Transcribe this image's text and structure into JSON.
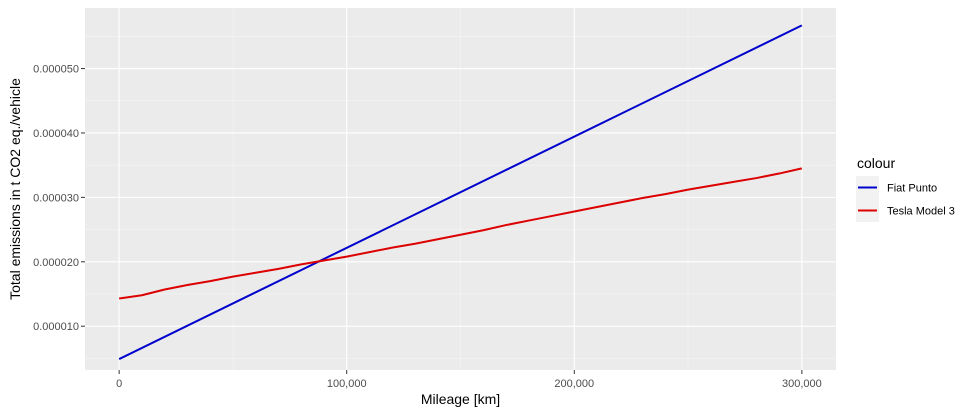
{
  "chart_data": {
    "type": "line",
    "title": "",
    "xlabel": "Mileage [km]",
    "ylabel": "Total emissions in t CO2 eq./vehicle",
    "xlim": [
      -15000,
      315000
    ],
    "ylim": [
      3.2e-06,
      5.94e-05
    ],
    "x_ticks": [
      0,
      100000,
      200000,
      300000
    ],
    "x_tick_labels": [
      "0",
      "100,000",
      "200,000",
      "300,000"
    ],
    "y_ticks": [
      1e-05,
      2e-05,
      3e-05,
      4e-05,
      5e-05
    ],
    "y_tick_labels": [
      "0.000010",
      "0.000020",
      "0.000030",
      "0.000040",
      "0.000050"
    ],
    "grid": true,
    "background": "#ebebeb",
    "legend": {
      "title": "colour",
      "position": "right"
    },
    "series": [
      {
        "name": "Fiat Punto",
        "color": "#0000cd",
        "x": [
          0,
          300000
        ],
        "y": [
          4.9e-06,
          5.67e-05
        ]
      },
      {
        "name": "Tesla Model 3",
        "color": "#dd0000",
        "x": [
          0,
          10000,
          20000,
          30000,
          40000,
          50000,
          60000,
          70000,
          80000,
          90000,
          100000,
          110000,
          120000,
          130000,
          140000,
          150000,
          160000,
          170000,
          180000,
          190000,
          200000,
          210000,
          220000,
          230000,
          240000,
          250000,
          260000,
          270000,
          280000,
          290000,
          300000
        ],
        "y": [
          1.43e-05,
          1.48e-05,
          1.57e-05,
          1.64e-05,
          1.7e-05,
          1.77e-05,
          1.83e-05,
          1.89e-05,
          1.96e-05,
          2.02e-05,
          2.08e-05,
          2.15e-05,
          2.22e-05,
          2.28e-05,
          2.35e-05,
          2.42e-05,
          2.49e-05,
          2.57e-05,
          2.64e-05,
          2.71e-05,
          2.78e-05,
          2.85e-05,
          2.92e-05,
          2.99e-05,
          3.05e-05,
          3.12e-05,
          3.18e-05,
          3.24e-05,
          3.3e-05,
          3.37e-05,
          3.45e-05
        ]
      }
    ]
  }
}
